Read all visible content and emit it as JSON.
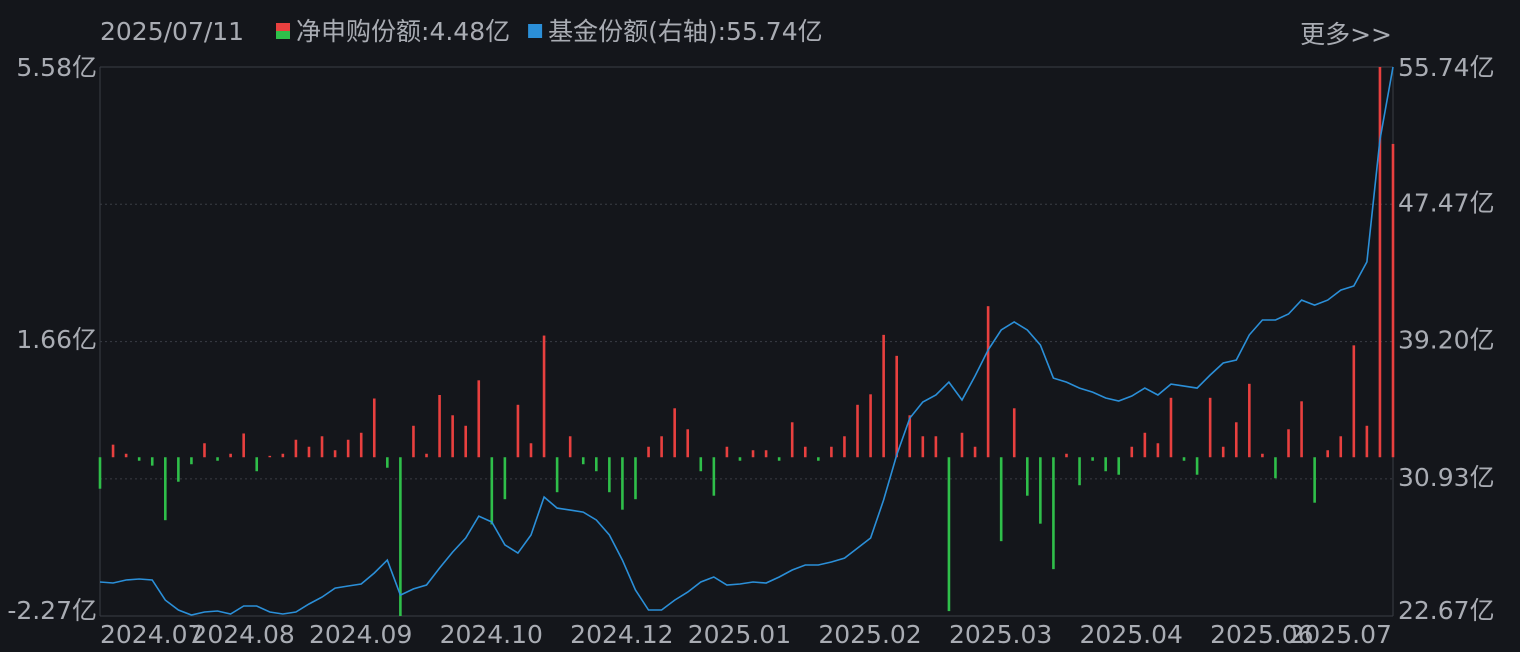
{
  "header": {
    "date": "2025/07/11",
    "more": "更多>>"
  },
  "chart_data": {
    "type": "bar-line",
    "xlim": [
      0,
      99
    ],
    "xticks": [
      {
        "value": 0,
        "label": "2024.07"
      },
      {
        "value": 7,
        "label": "2024.08"
      },
      {
        "value": 16,
        "label": "2024.09"
      },
      {
        "value": 26,
        "label": "2024.10"
      },
      {
        "value": 36,
        "label": "2024.12"
      },
      {
        "value": 45,
        "label": "2025.01"
      },
      {
        "value": 55,
        "label": "2025.02"
      },
      {
        "value": 65,
        "label": "2025.03"
      },
      {
        "value": 75,
        "label": "2025.04"
      },
      {
        "value": 85,
        "label": "2025.06"
      },
      {
        "value": 91,
        "label": "2025.07"
      }
    ],
    "ylim": [
      -2.27,
      5.58
    ],
    "yticks": [
      {
        "value": -2.27,
        "label": "-2.27亿"
      },
      {
        "value": 1.66,
        "label": "1.66亿"
      },
      {
        "value": 5.58,
        "label": "5.58亿"
      }
    ],
    "y2lim": [
      22.67,
      55.74
    ],
    "y2ticks": [
      {
        "value": 22.67,
        "label": "22.67亿"
      },
      {
        "value": 30.93,
        "label": "30.93亿"
      },
      {
        "value": 39.2,
        "label": "39.20亿"
      },
      {
        "value": 47.47,
        "label": "47.47亿"
      },
      {
        "value": 55.74,
        "label": "55.74亿"
      }
    ],
    "grid": true,
    "series": [
      {
        "name": "净申购份额",
        "current_label": ":4.48亿",
        "type": "bar",
        "color": "#e8403f",
        "negative_color": "#2fbf4a",
        "values": [
          -0.45,
          0.18,
          0.05,
          -0.05,
          -0.12,
          -0.9,
          -0.35,
          -0.1,
          0.2,
          -0.05,
          0.05,
          0.34,
          -0.2,
          0.02,
          0.05,
          0.25,
          0.15,
          0.3,
          0.1,
          0.25,
          0.35,
          0.84,
          -0.15,
          -2.27,
          0.45,
          0.05,
          0.89,
          0.6,
          0.45,
          1.1,
          -0.96,
          -0.6,
          0.75,
          0.2,
          1.74,
          -0.5,
          0.3,
          -0.1,
          -0.2,
          -0.5,
          -0.75,
          -0.6,
          0.15,
          0.3,
          0.7,
          0.4,
          -0.2,
          -0.55,
          0.15,
          -0.05,
          0.1,
          0.1,
          -0.05,
          0.5,
          0.15,
          -0.05,
          0.15,
          0.3,
          0.75,
          0.9,
          1.75,
          1.45,
          0.6,
          0.3,
          0.3,
          -2.2,
          0.35,
          0.15,
          2.16,
          -1.2,
          0.7,
          -0.55,
          -0.95,
          -1.6,
          0.05,
          -0.4,
          -0.05,
          -0.2,
          -0.25,
          0.15,
          0.35,
          0.2,
          0.85,
          -0.05,
          -0.25,
          0.85,
          0.15,
          0.5,
          1.05,
          0.05,
          -0.3,
          0.4,
          0.8,
          -0.65,
          0.1,
          0.3,
          1.6,
          0.45,
          5.58,
          4.48
        ]
      },
      {
        "name": "基金份额(右轴)",
        "current_label": ":55.74亿",
        "type": "line",
        "axis": "y2",
        "color": "#2b8fd8",
        "values": [
          24.72,
          24.66,
          24.84,
          24.9,
          24.84,
          23.63,
          23.03,
          22.73,
          22.91,
          22.97,
          22.79,
          23.27,
          23.27,
          22.91,
          22.79,
          22.91,
          23.39,
          23.81,
          24.35,
          24.48,
          24.6,
          25.26,
          26.04,
          23.93,
          24.3,
          24.54,
          25.56,
          26.52,
          27.37,
          28.69,
          28.33,
          26.95,
          26.46,
          27.55,
          29.84,
          29.17,
          29.05,
          28.93,
          28.45,
          27.55,
          26.04,
          24.23,
          23.03,
          23.03,
          23.63,
          24.11,
          24.72,
          25.02,
          24.54,
          24.6,
          24.72,
          24.66,
          25.02,
          25.44,
          25.74,
          25.74,
          25.92,
          26.16,
          26.76,
          27.37,
          29.66,
          32.37,
          34.59,
          35.56,
          35.98,
          36.76,
          35.68,
          37.13,
          38.69,
          39.9,
          40.38,
          39.9,
          38.99,
          37.0,
          36.76,
          36.4,
          36.16,
          35.8,
          35.62,
          35.92,
          36.4,
          35.98,
          36.64,
          36.52,
          36.4,
          37.19,
          37.91,
          38.09,
          39.6,
          40.5,
          40.5,
          40.86,
          41.7,
          41.4,
          41.7,
          42.3,
          42.55,
          44.0,
          51.34,
          55.74
        ]
      }
    ]
  }
}
